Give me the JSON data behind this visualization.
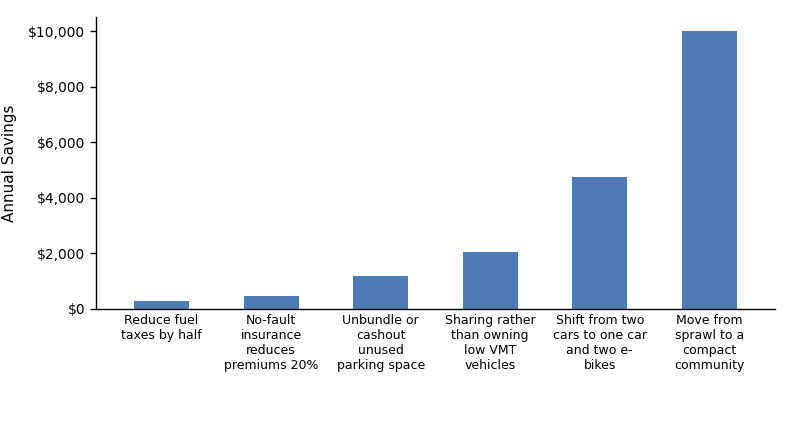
{
  "categories": [
    "Reduce fuel\ntaxes by half",
    "No-fault\ninsurance\nreduces\npremiums 20%",
    "Unbundle or\ncashout\nunused\nparking space",
    "Sharing rather\nthan owning\nlow VMT\nvehicles",
    "Shift from two\ncars to one car\nand two e-\nbikes",
    "Move from\nsprawl to a\ncompact\ncommunity"
  ],
  "values": [
    300,
    450,
    1200,
    2050,
    4750,
    10000
  ],
  "bar_color": "#4E7BB5",
  "ylabel": "Annual Savings",
  "ylim": [
    0,
    10500
  ],
  "yticks": [
    0,
    2000,
    4000,
    6000,
    8000,
    10000
  ],
  "ytick_labels": [
    "$0",
    "$2,000",
    "$4,000",
    "$6,000",
    "$8,000",
    "$10,000"
  ],
  "background_color": "#ffffff",
  "bar_width": 0.5
}
